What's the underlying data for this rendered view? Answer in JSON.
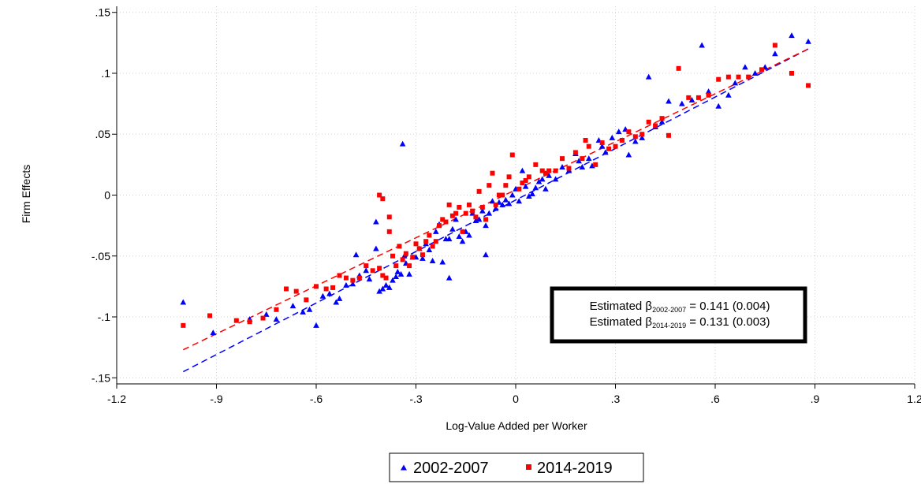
{
  "chart_data": {
    "type": "scatter",
    "title": "",
    "xlabel": "Log-Value Added per Worker",
    "ylabel": "Firm Effects",
    "xlim": [
      -1.2,
      1.2
    ],
    "ylim": [
      -0.155,
      0.155
    ],
    "xticks": [
      -1.2,
      -0.9,
      -0.6,
      -0.3,
      0,
      0.3,
      0.6,
      0.9,
      1.2
    ],
    "xtick_labels": [
      "-1.2",
      "-.9",
      "-.6",
      "-.3",
      "0",
      ".3",
      ".6",
      ".9",
      "1.2"
    ],
    "yticks": [
      -0.15,
      -0.1,
      -0.05,
      0,
      0.05,
      0.1,
      0.15
    ],
    "ytick_labels": [
      "-.15",
      "-.1",
      "-.05",
      "0",
      ".05",
      ".1",
      ".15"
    ],
    "grid": true,
    "legend_position": "bottom",
    "colors": {
      "s1": "#0000ff",
      "s2": "#ff0000"
    },
    "annotation": {
      "line1": {
        "prefix": "Estimated β",
        "sub": "2002-2007",
        "suffix": " = 0.141 (0.004)"
      },
      "line2": {
        "prefix": "Estimated β",
        "sub": "2014-2019",
        "suffix": " = 0.131 (0.003)"
      }
    },
    "series": [
      {
        "name": "2002-2007",
        "marker": "triangle",
        "color": "#0000ff",
        "fit": {
          "x1": -1.0,
          "y1": -0.145,
          "x2": 0.88,
          "y2": 0.12
        },
        "x": [
          -1.0,
          -0.91,
          -0.8,
          -0.75,
          -0.72,
          -0.67,
          -0.64,
          -0.62,
          -0.6,
          -0.58,
          -0.56,
          -0.54,
          -0.53,
          -0.51,
          -0.49,
          -0.48,
          -0.47,
          -0.45,
          -0.44,
          -0.42,
          -0.41,
          -0.4,
          -0.39,
          -0.38,
          -0.37,
          -0.36,
          -0.355,
          -0.345,
          -0.335,
          -0.33,
          -0.32,
          -0.31,
          -0.3,
          -0.29,
          -0.28,
          -0.27,
          -0.26,
          -0.25,
          -0.24,
          -0.23,
          -0.22,
          -0.21,
          -0.2,
          -0.19,
          -0.18,
          -0.17,
          -0.16,
          -0.15,
          -0.14,
          -0.13,
          -0.12,
          -0.11,
          -0.1,
          -0.09,
          -0.08,
          -0.07,
          -0.06,
          -0.05,
          -0.04,
          -0.03,
          -0.02,
          -0.01,
          0.0,
          0.01,
          0.02,
          0.03,
          0.04,
          0.05,
          0.06,
          0.07,
          0.08,
          0.09,
          0.1,
          0.12,
          0.14,
          0.16,
          0.18,
          0.19,
          0.2,
          0.22,
          0.23,
          0.25,
          0.26,
          0.27,
          0.29,
          0.31,
          0.33,
          0.34,
          0.36,
          0.38,
          0.4,
          0.42,
          0.44,
          0.46,
          0.5,
          0.53,
          0.56,
          0.58,
          0.61,
          0.64,
          0.66,
          0.69,
          0.72,
          0.75,
          0.78,
          0.83,
          0.88,
          -0.34,
          -0.42,
          -0.2,
          -0.09
        ],
        "y": [
          -0.088,
          -0.113,
          -0.102,
          -0.098,
          -0.102,
          -0.091,
          -0.096,
          -0.094,
          -0.107,
          -0.083,
          -0.081,
          -0.088,
          -0.085,
          -0.074,
          -0.073,
          -0.049,
          -0.066,
          -0.062,
          -0.069,
          -0.044,
          -0.079,
          -0.077,
          -0.074,
          -0.076,
          -0.07,
          -0.067,
          -0.063,
          -0.065,
          -0.05,
          -0.056,
          -0.065,
          -0.051,
          -0.051,
          -0.044,
          -0.052,
          -0.04,
          -0.045,
          -0.054,
          -0.03,
          -0.024,
          -0.055,
          -0.036,
          -0.068,
          -0.028,
          -0.02,
          -0.034,
          -0.038,
          -0.03,
          -0.033,
          -0.015,
          -0.021,
          -0.02,
          -0.013,
          -0.025,
          -0.015,
          -0.005,
          -0.011,
          -0.006,
          -0.008,
          -0.004,
          -0.007,
          0.0,
          0.005,
          -0.005,
          0.02,
          0.007,
          -0.001,
          0.001,
          0.006,
          0.011,
          0.013,
          0.005,
          0.016,
          0.013,
          0.023,
          0.02,
          0.034,
          0.028,
          0.023,
          0.03,
          0.024,
          0.045,
          0.04,
          0.035,
          0.047,
          0.052,
          0.054,
          0.033,
          0.044,
          0.047,
          0.097,
          0.056,
          0.06,
          0.077,
          0.075,
          0.078,
          0.123,
          0.085,
          0.073,
          0.082,
          0.092,
          0.105,
          0.1,
          0.105,
          0.116,
          0.131,
          0.126,
          0.042,
          -0.022,
          -0.036,
          -0.049
        ]
      },
      {
        "name": "2014-2019",
        "marker": "square",
        "color": "#ff0000",
        "fit": {
          "x1": -1.0,
          "y1": -0.127,
          "x2": 0.88,
          "y2": 0.12
        },
        "x": [
          -1.0,
          -0.92,
          -0.84,
          -0.8,
          -0.76,
          -0.72,
          -0.69,
          -0.66,
          -0.63,
          -0.6,
          -0.57,
          -0.55,
          -0.53,
          -0.51,
          -0.49,
          -0.47,
          -0.45,
          -0.43,
          -0.41,
          -0.4,
          -0.39,
          -0.38,
          -0.37,
          -0.36,
          -0.35,
          -0.34,
          -0.33,
          -0.32,
          -0.31,
          -0.3,
          -0.29,
          -0.28,
          -0.27,
          -0.26,
          -0.25,
          -0.24,
          -0.23,
          -0.22,
          -0.21,
          -0.2,
          -0.19,
          -0.18,
          -0.17,
          -0.16,
          -0.15,
          -0.14,
          -0.13,
          -0.12,
          -0.11,
          -0.1,
          -0.09,
          -0.08,
          -0.07,
          -0.06,
          -0.05,
          -0.04,
          -0.03,
          -0.02,
          -0.01,
          0.01,
          0.02,
          0.03,
          0.04,
          0.06,
          0.08,
          0.09,
          0.1,
          0.12,
          0.14,
          0.16,
          0.18,
          0.2,
          0.21,
          0.22,
          0.24,
          0.26,
          0.28,
          0.3,
          0.32,
          0.34,
          0.36,
          0.38,
          0.4,
          0.42,
          0.44,
          0.46,
          0.49,
          0.52,
          0.55,
          0.58,
          0.61,
          0.64,
          0.67,
          0.7,
          0.74,
          0.78,
          0.83,
          0.88,
          -0.41,
          -0.4,
          -0.38
        ],
        "y": [
          -0.107,
          -0.099,
          -0.103,
          -0.104,
          -0.101,
          -0.094,
          -0.077,
          -0.079,
          -0.086,
          -0.075,
          -0.077,
          -0.076,
          -0.066,
          -0.068,
          -0.07,
          -0.068,
          -0.058,
          -0.062,
          -0.06,
          -0.066,
          -0.068,
          -0.03,
          -0.05,
          -0.058,
          -0.042,
          -0.053,
          -0.048,
          -0.058,
          -0.051,
          -0.04,
          -0.044,
          -0.049,
          -0.038,
          -0.033,
          -0.042,
          -0.038,
          -0.025,
          -0.02,
          -0.022,
          -0.008,
          -0.017,
          -0.015,
          -0.01,
          -0.03,
          -0.015,
          -0.008,
          -0.013,
          -0.018,
          0.003,
          -0.01,
          -0.02,
          0.008,
          0.018,
          -0.008,
          0.0,
          0.0,
          0.008,
          0.015,
          0.033,
          0.005,
          0.01,
          0.012,
          0.015,
          0.025,
          0.02,
          0.018,
          0.02,
          0.02,
          0.03,
          0.022,
          0.035,
          0.03,
          0.045,
          0.04,
          0.025,
          0.043,
          0.038,
          0.04,
          0.045,
          0.052,
          0.048,
          0.05,
          0.06,
          0.057,
          0.063,
          0.049,
          0.104,
          0.08,
          0.08,
          0.082,
          0.095,
          0.097,
          0.097,
          0.097,
          0.103,
          0.123,
          0.1,
          0.09,
          0.0,
          -0.003,
          -0.018
        ]
      }
    ]
  }
}
